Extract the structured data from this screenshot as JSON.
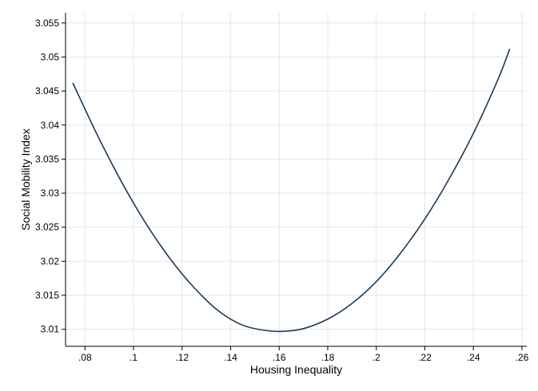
{
  "chart_data": {
    "type": "line",
    "title": "",
    "xlabel": "Housing Inequality",
    "ylabel": "Social Mobility Index",
    "xlim": [
      0.072,
      0.262
    ],
    "ylim": [
      3.0075,
      3.0565
    ],
    "x_ticks": [
      0.08,
      0.1,
      0.12,
      0.14,
      0.16,
      0.18,
      0.2,
      0.22,
      0.24,
      0.26
    ],
    "x_tick_labels": [
      ".08",
      ".1",
      ".12",
      ".14",
      ".16",
      ".18",
      ".2",
      ".22",
      ".24",
      ".26"
    ],
    "y_ticks": [
      3.01,
      3.015,
      3.02,
      3.025,
      3.03,
      3.035,
      3.04,
      3.045,
      3.05,
      3.055
    ],
    "y_tick_labels": [
      "3.01",
      "3.015",
      "3.02",
      "3.025",
      "3.03",
      "3.035",
      "3.04",
      "3.045",
      "3.05",
      "3.055"
    ],
    "grid": true,
    "legend": "none",
    "line_color": "#1a3a5c",
    "series": [
      {
        "x": [
          0.075,
          0.085,
          0.095,
          0.105,
          0.115,
          0.125,
          0.135,
          0.145,
          0.155,
          0.162,
          0.17,
          0.18,
          0.19,
          0.2,
          0.21,
          0.22,
          0.23,
          0.24,
          0.25,
          0.255
        ],
        "values": [
          3.0462,
          3.0386,
          3.0317,
          3.0256,
          3.0204,
          3.0161,
          3.0127,
          3.0106,
          3.0098,
          3.0097,
          3.0101,
          3.0115,
          3.0138,
          3.017,
          3.0212,
          3.0262,
          3.0321,
          3.0388,
          3.0466,
          3.0512
        ]
      }
    ]
  }
}
